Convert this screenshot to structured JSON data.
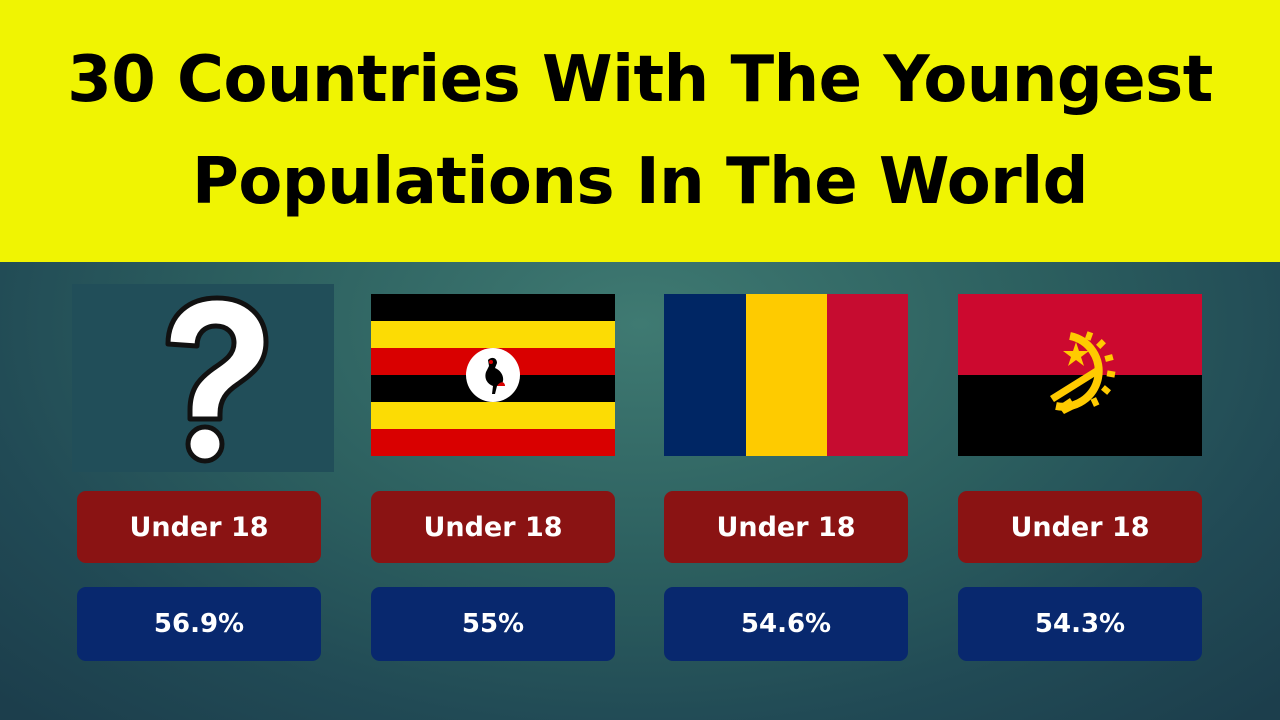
{
  "banner": {
    "title_line1": "30 Countries With The Youngest",
    "title_line2": "Populations In The World"
  },
  "cards": [
    {
      "flag": "question-mark",
      "label": "Under 18",
      "value": "56.9%"
    },
    {
      "flag": "uganda-flag",
      "label": "Under 18",
      "value": "55%"
    },
    {
      "flag": "chad-flag",
      "label": "Under 18",
      "value": "54.6%"
    },
    {
      "flag": "angola-flag",
      "label": "Under 18",
      "value": "54.3%"
    }
  ],
  "colors": {
    "banner": "#f0f402",
    "label_pill": "#8a1313",
    "value_pill": "#08286e"
  }
}
